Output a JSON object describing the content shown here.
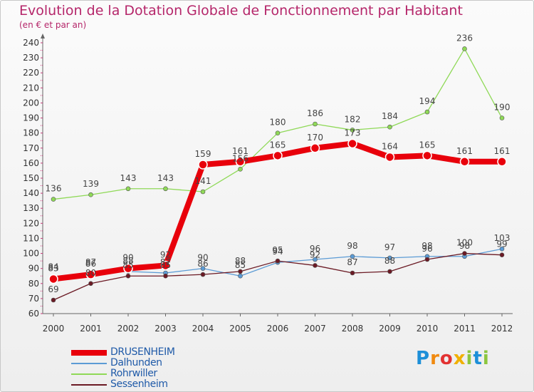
{
  "title": "Evolution de la Dotation Globale de Fonctionnement par Habitant",
  "subtitle": "(en € et par an)",
  "logo": "Proxiti",
  "chart_data": {
    "type": "line",
    "title": "Evolution de la Dotation Globale de Fonctionnement par Habitant",
    "subtitle": "(en € et par an)",
    "xlabel": "",
    "ylabel": "",
    "x": [
      "2000",
      "2001",
      "2002",
      "2003",
      "2004",
      "2005",
      "2006",
      "2007",
      "2008",
      "2009",
      "2010",
      "2011",
      "2012"
    ],
    "ylim": [
      60,
      240
    ],
    "yticks": [
      60,
      70,
      80,
      90,
      100,
      110,
      120,
      130,
      140,
      150,
      160,
      170,
      180,
      190,
      200,
      210,
      220,
      230,
      240
    ],
    "grid": false,
    "legend": "bottom-left",
    "series": [
      {
        "name": "DRUSENHEIM",
        "color": "#e8000b",
        "values": [
          83,
          86,
          90,
          92,
          159,
          161,
          165,
          170,
          173,
          164,
          165,
          161,
          161
        ]
      },
      {
        "name": "Dalhunden",
        "color": "#5b9bd5",
        "values": [
          84,
          87,
          88,
          87,
          90,
          85,
          94,
          96,
          98,
          97,
          98,
          98,
          103
        ]
      },
      {
        "name": "Rohrwiller",
        "color": "#8fd957",
        "values": [
          136,
          139,
          143,
          143,
          141,
          156,
          180,
          186,
          182,
          184,
          194,
          236,
          190
        ]
      },
      {
        "name": "Sessenheim",
        "color": "#6b1a24",
        "values": [
          69,
          80,
          85,
          85,
          86,
          88,
          95,
          92,
          87,
          88,
          96,
          100,
          99
        ]
      }
    ],
    "labels": [
      [
        83,
        86,
        90,
        92,
        159,
        161,
        165,
        170,
        173,
        164,
        165,
        161,
        161
      ],
      [
        84,
        87,
        88,
        87,
        90,
        85,
        94,
        96,
        98,
        97,
        98,
        98,
        103
      ],
      [
        136,
        139,
        143,
        143,
        141,
        156,
        180,
        186,
        182,
        184,
        194,
        236,
        190
      ],
      [
        69,
        80,
        85,
        85,
        86,
        88,
        95,
        92,
        87,
        88,
        96,
        100,
        99
      ]
    ]
  }
}
